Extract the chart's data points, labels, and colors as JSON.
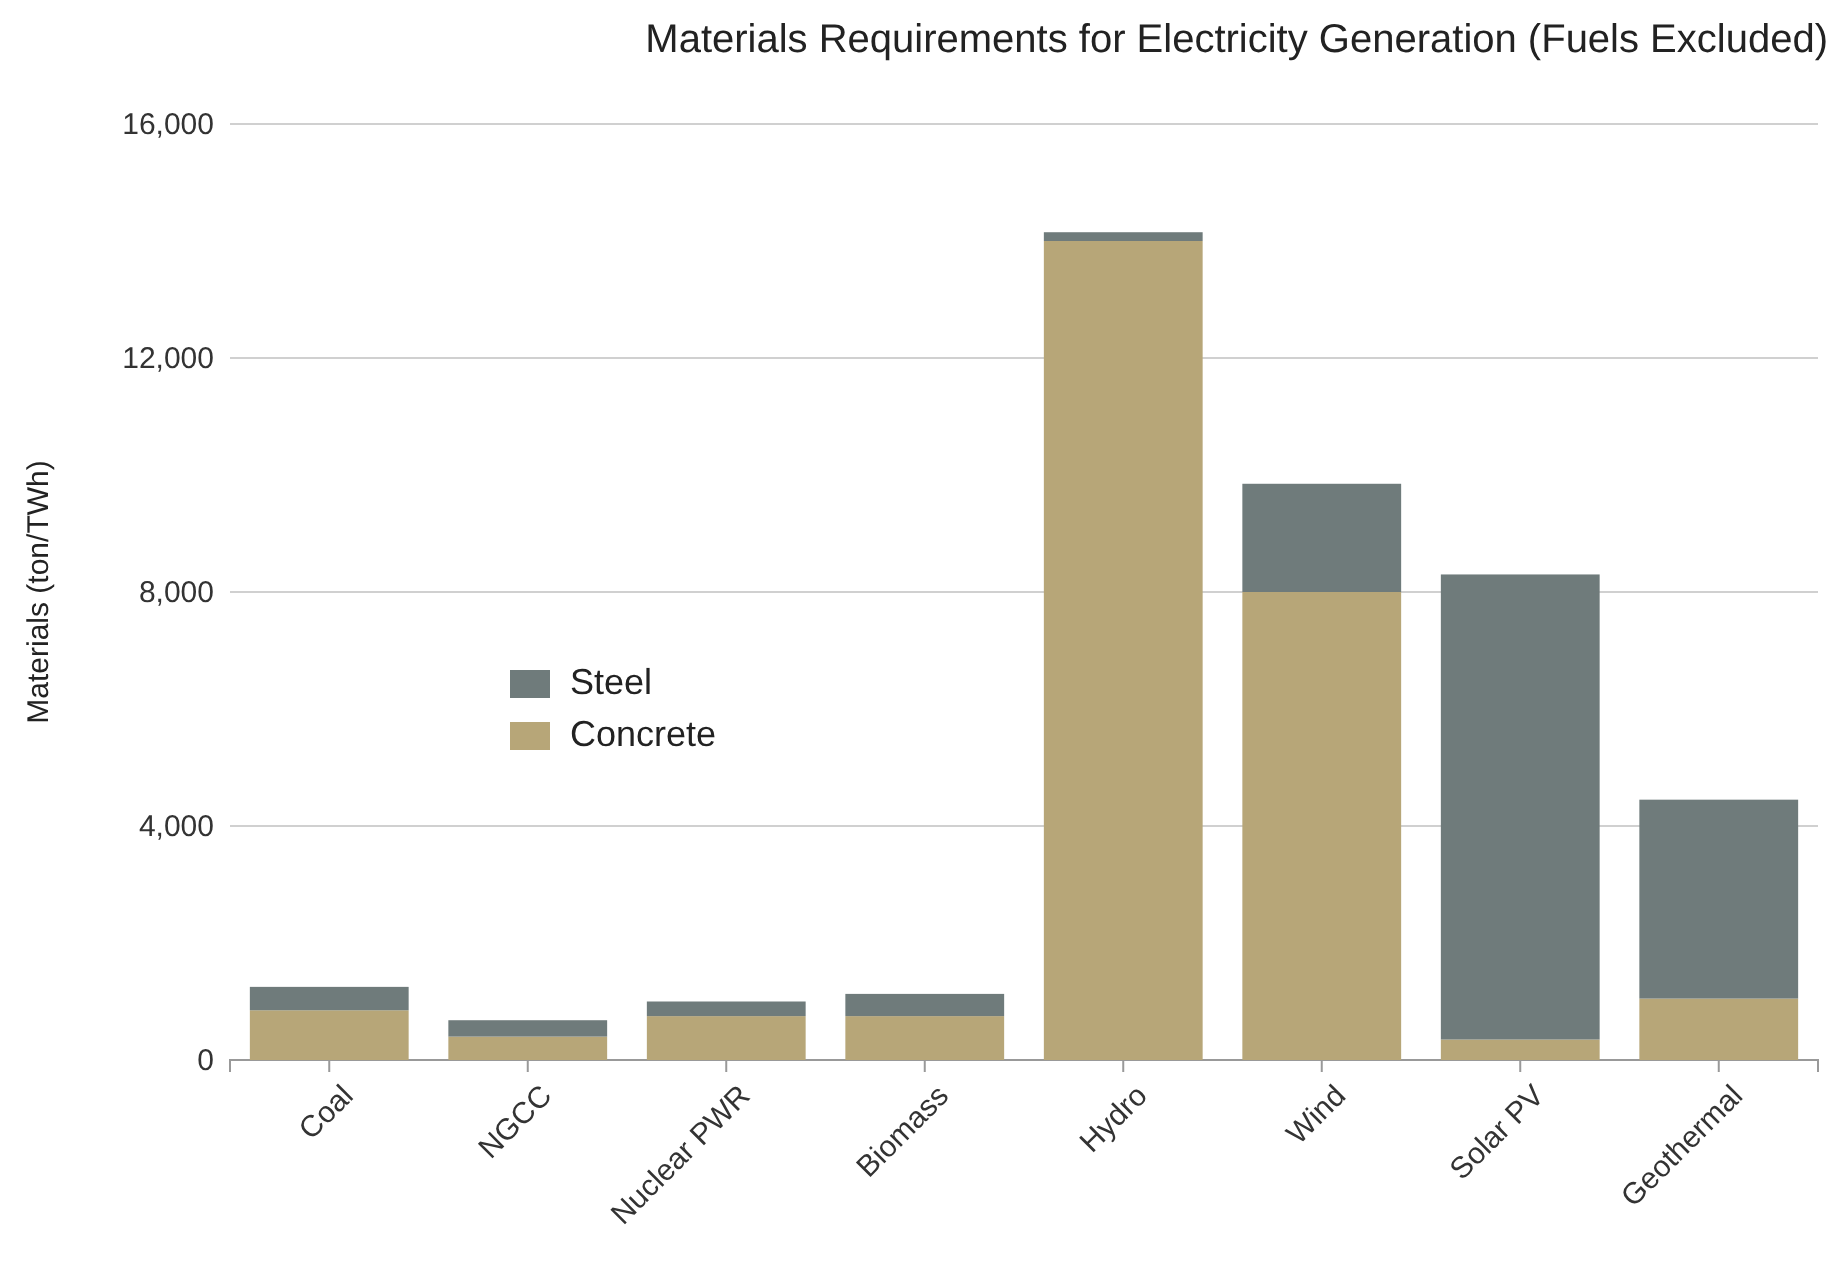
{
  "chart_data": {
    "type": "bar",
    "title": "Materials Requirements for Electricity Generation (Fuels Excluded)",
    "ylabel": "Materials (ton/TWh)",
    "categories": [
      "Coal",
      "NGCC",
      "Nuclear PWR",
      "Biomass",
      "Hydro",
      "Wind",
      "Solar PV",
      "Geothermal"
    ],
    "stacked": true,
    "series": [
      {
        "name": "Concrete",
        "color": "#b7a678",
        "values": [
          850,
          400,
          750,
          750,
          14000,
          8000,
          350,
          1050
        ]
      },
      {
        "name": "Steel",
        "color": "#6f7b7b",
        "values": [
          400,
          280,
          250,
          380,
          150,
          1850,
          7950,
          3400
        ]
      }
    ],
    "ylim": [
      0,
      16000
    ],
    "yticks": [
      0,
      {
        "value": 4000,
        "label": "4,000"
      },
      {
        "value": 8000,
        "label": "8,000"
      },
      {
        "value": 12000,
        "label": "12,000"
      },
      {
        "value": 16000,
        "label": "16,000"
      }
    ],
    "grid": "y",
    "legend": "left"
  }
}
